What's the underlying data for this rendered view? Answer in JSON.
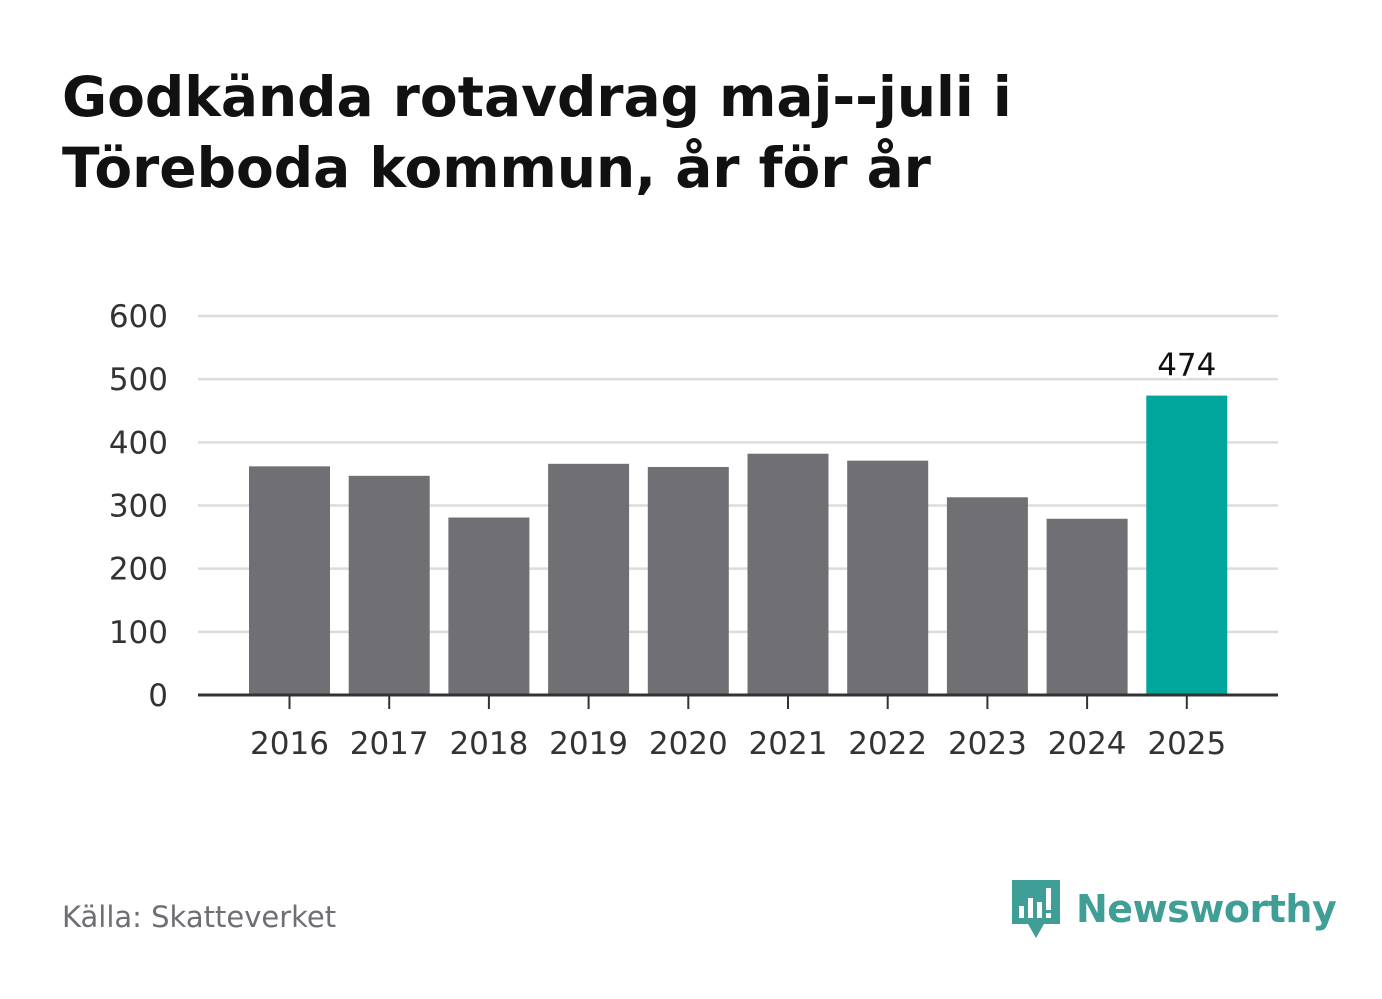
{
  "chart_data": {
    "type": "bar",
    "title": [
      "Godkända rotavdrag maj--juli i",
      "Töreboda kommun, år för år"
    ],
    "categories": [
      "2016",
      "2017",
      "2018",
      "2019",
      "2020",
      "2021",
      "2022",
      "2023",
      "2024",
      "2025"
    ],
    "values": [
      362,
      347,
      281,
      366,
      361,
      382,
      371,
      313,
      279,
      474
    ],
    "ylim": [
      0,
      600
    ],
    "yticks": [
      "0",
      "100",
      "200",
      "300",
      "400",
      "500",
      "600"
    ],
    "grid": true,
    "highlight": {
      "index": 9,
      "label": "474"
    },
    "colors": {
      "bar": "#706f74",
      "highlight": "#00a69c",
      "grid": "#dcdcdc",
      "axis": "#333333"
    }
  },
  "source": "Källa: Skatteverket",
  "brand": {
    "name": "Newsworthy",
    "color": "#3f9f97",
    "icon": "newsworthy-chart-icon"
  }
}
